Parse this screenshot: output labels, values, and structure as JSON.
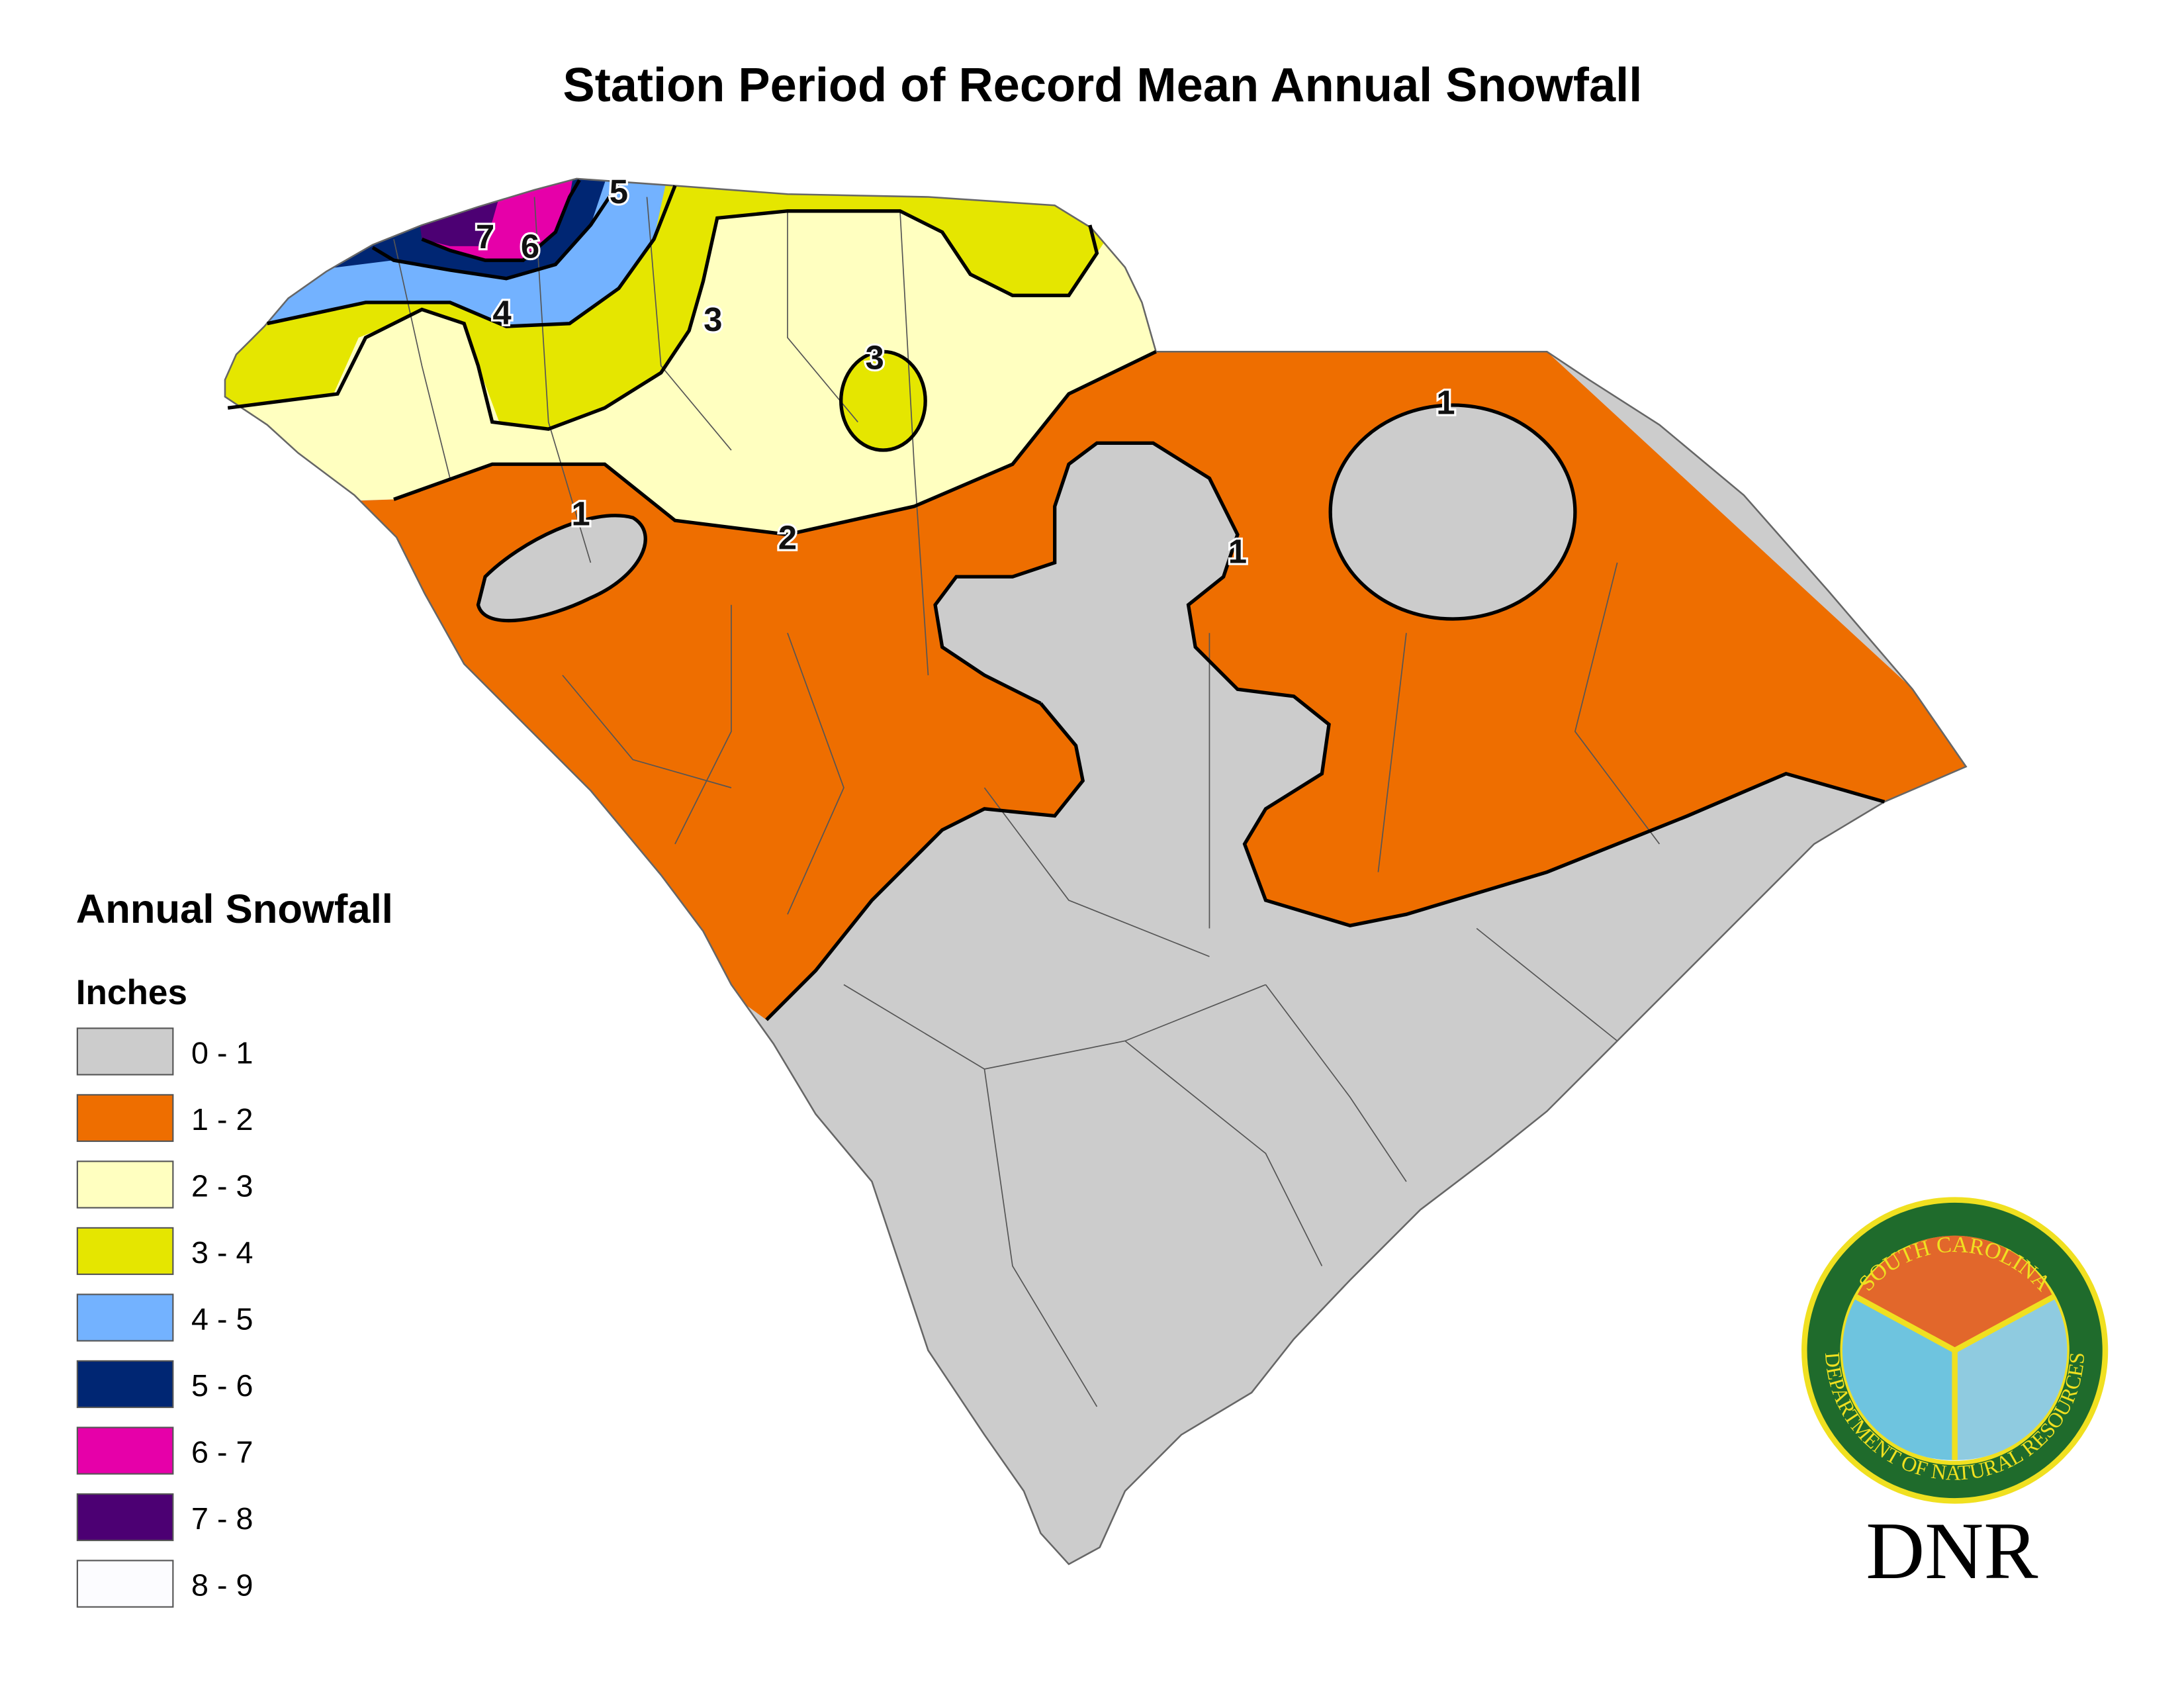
{
  "title": "Station Period of Record Mean Annual Snowfall",
  "legend": {
    "title": "Annual Snowfall",
    "unit": "Inches",
    "items": [
      {
        "label": "0 - 1",
        "color": "#cccccc"
      },
      {
        "label": "1 - 2",
        "color": "#ee6e00"
      },
      {
        "label": "2 - 3",
        "color": "#ffffc0"
      },
      {
        "label": "3 - 4",
        "color": "#e5e600"
      },
      {
        "label": "4 - 5",
        "color": "#73b2ff"
      },
      {
        "label": "5 - 6",
        "color": "#002673"
      },
      {
        "label": "6 - 7",
        "color": "#e600a9"
      },
      {
        "label": "7 - 8",
        "color": "#4c0073"
      },
      {
        "label": "8 - 9",
        "color": "#fcfcff"
      }
    ]
  },
  "contour_labels": [
    "7",
    "6",
    "5",
    "4",
    "3",
    "3",
    "1",
    "2",
    "1",
    "1"
  ],
  "logo": {
    "top_text": "SOUTH CAROLINA",
    "bottom_text": "DEPARTMENT OF NATURAL RESOURCES",
    "name": "DNR"
  }
}
